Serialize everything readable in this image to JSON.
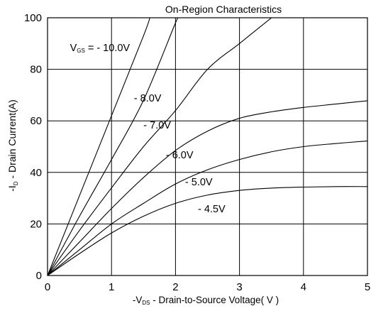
{
  "chart_data": {
    "type": "line",
    "title": "On-Region Characteristics",
    "xlabel": {
      "prefix": "-V",
      "sub": "DS",
      "rest": " - Drain-to-Source Voltage( V )"
    },
    "ylabel": {
      "prefix": "-I",
      "sub": "D",
      "rest": " - Drain Current(A)"
    },
    "xlim": [
      0,
      5
    ],
    "ylim": [
      0,
      100
    ],
    "x_ticks": [
      "0",
      "1",
      "2",
      "3",
      "4",
      "5"
    ],
    "y_ticks": [
      "0",
      "20",
      "40",
      "60",
      "80",
      "100"
    ],
    "grid": true,
    "series_label_prefix": {
      "main": "V",
      "sub": "GS",
      "rest": " ="
    },
    "series": [
      {
        "name": "- 10.0V",
        "label_at": [
          0.35,
          87
        ],
        "x": [
          0,
          0.5,
          1.0,
          1.5,
          1.6
        ],
        "y": [
          0,
          31,
          62,
          93,
          100
        ]
      },
      {
        "name": "- 8.0V",
        "label_at": [
          1.35,
          67.5
        ],
        "x": [
          0,
          0.5,
          1.0,
          1.5,
          2.0,
          2.05
        ],
        "y": [
          0,
          23,
          45,
          68,
          98,
          100
        ]
      },
      {
        "name": "- 7.0V",
        "label_at": [
          1.5,
          57
        ],
        "x": [
          0,
          0.5,
          1.0,
          1.5,
          2.0,
          2.5,
          3.0,
          3.5
        ],
        "y": [
          0,
          17.5,
          34,
          50,
          64,
          80,
          90,
          100
        ]
      },
      {
        "name": "- 6.0V",
        "label_at": [
          1.85,
          45.5
        ],
        "x": [
          0,
          0.5,
          1.0,
          1.5,
          2.0,
          2.5,
          3.0,
          3.5,
          4.0,
          4.5,
          5.0
        ],
        "y": [
          0,
          13,
          26,
          38,
          48.5,
          56,
          61,
          63.5,
          65.2,
          66.5,
          67.8
        ]
      },
      {
        "name": "- 5.0V",
        "label_at": [
          2.15,
          35
        ],
        "x": [
          0,
          0.5,
          1.0,
          1.5,
          2.0,
          2.5,
          3.0,
          3.5,
          4.0,
          4.5,
          5.0
        ],
        "y": [
          0,
          10,
          20,
          28,
          35.5,
          41,
          45,
          48,
          50,
          51.2,
          52.2
        ]
      },
      {
        "name": "- 4.5V",
        "label_at": [
          2.35,
          24.5
        ],
        "x": [
          0,
          0.5,
          1.0,
          1.5,
          2.0,
          2.5,
          3.0,
          3.5,
          4.0,
          4.5,
          5.0
        ],
        "y": [
          0,
          8.5,
          16.5,
          23,
          28,
          31.2,
          33,
          33.9,
          34.3,
          34.5,
          34.5
        ]
      }
    ]
  }
}
